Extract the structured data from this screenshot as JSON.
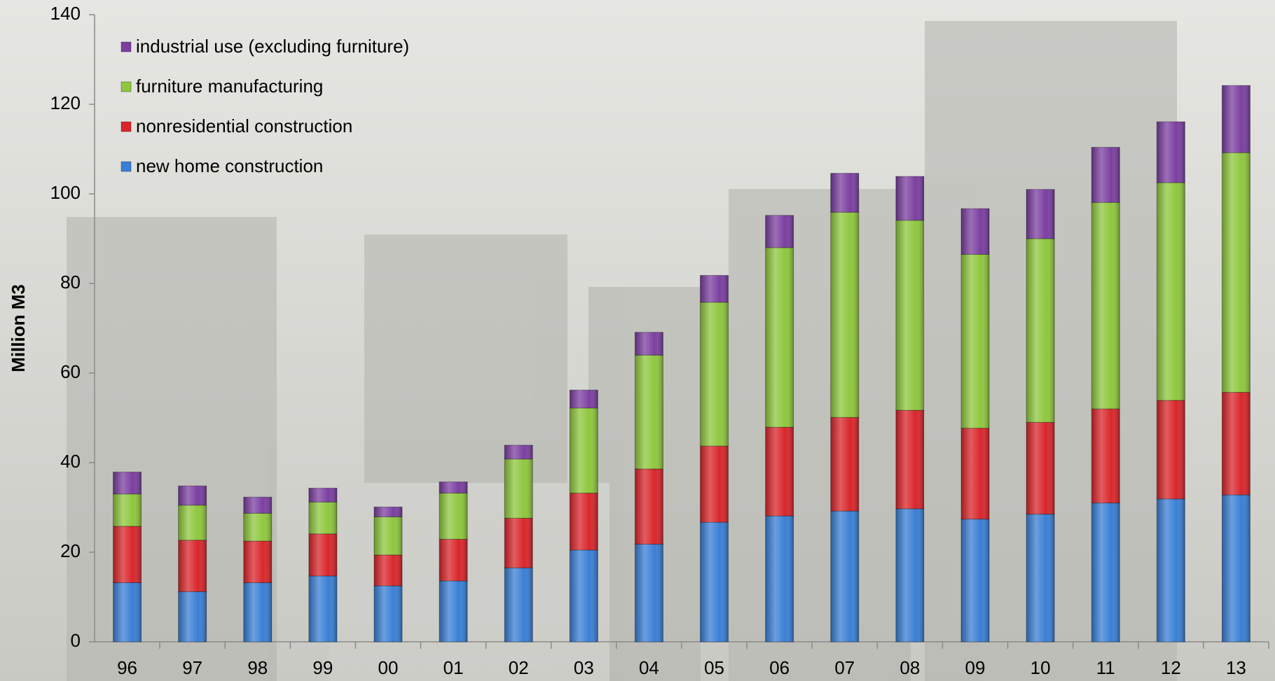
{
  "chart_data": {
    "type": "stacked_bar",
    "ylabel": "Million M3",
    "categories": [
      "96",
      "97",
      "98",
      "99",
      "00",
      "01",
      "02",
      "03",
      "04",
      "05",
      "06",
      "07",
      "08",
      "09",
      "10",
      "11",
      "12",
      "13"
    ],
    "series": [
      {
        "name": "new home construction",
        "color": "#3a7fd5",
        "values": [
          13.2,
          11.2,
          13.2,
          14.7,
          12.5,
          13.6,
          16.5,
          20.5,
          21.8,
          26.7,
          28.1,
          29.2,
          29.7,
          27.4,
          28.5,
          31.0,
          31.9,
          32.8
        ]
      },
      {
        "name": "nonresidential construction",
        "color": "#d9262b",
        "values": [
          12.6,
          11.5,
          9.3,
          9.4,
          6.9,
          9.3,
          11.1,
          12.7,
          16.8,
          17.0,
          19.8,
          20.9,
          22.0,
          20.3,
          20.5,
          21.0,
          22.0,
          22.9
        ]
      },
      {
        "name": "furniture manufacturing",
        "color": "#8fc73e",
        "values": [
          7.2,
          7.8,
          6.2,
          7.1,
          8.5,
          10.3,
          13.2,
          19.0,
          25.4,
          32.1,
          40.1,
          45.8,
          42.4,
          38.8,
          41.0,
          46.1,
          48.6,
          53.5
        ]
      },
      {
        "name": "industrial use (excluding furniture)",
        "color": "#7b3fa0",
        "values": [
          4.9,
          4.3,
          3.6,
          3.1,
          2.2,
          2.5,
          3.1,
          4.0,
          5.1,
          6.0,
          7.2,
          8.7,
          9.8,
          10.2,
          11.0,
          12.3,
          13.6,
          15.0
        ]
      }
    ],
    "ylim": [
      0,
      140
    ],
    "yticks": [
      0,
      20,
      40,
      60,
      80,
      100,
      120,
      140
    ],
    "legend": "upper left"
  }
}
